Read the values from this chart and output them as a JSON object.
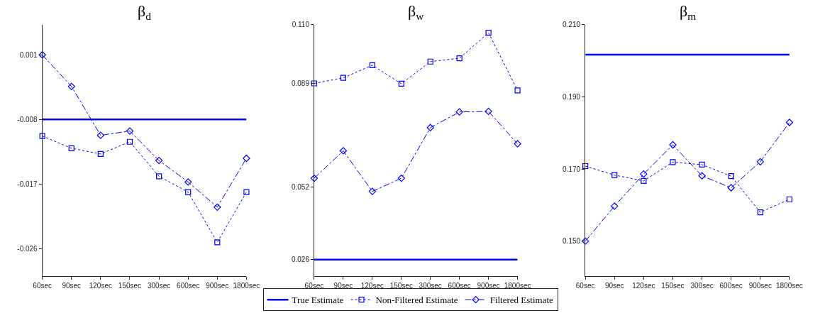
{
  "chart_data": [
    {
      "type": "line",
      "title": "β$_{d}$",
      "categories": [
        "60sec",
        "90sec",
        "120sec",
        "150sec",
        "300sec",
        "600sec",
        "900sec",
        "1800sec"
      ],
      "ylim": [
        -0.0298,
        0.0052
      ],
      "yticks": [
        -0.026,
        -0.017,
        -0.008,
        0.001
      ],
      "legend": "bottom",
      "series": [
        {
          "name": "True Estimate",
          "color": "#0000ff",
          "marker": "none",
          "line_style": "solid",
          "values": [
            -0.008,
            -0.008,
            -0.008,
            -0.008,
            -0.008,
            -0.008,
            -0.008,
            -0.008
          ]
        },
        {
          "name": "Non-Filtered Estimate",
          "color": "#0000ff",
          "marker": "square",
          "line_style": "dotted",
          "values": [
            -0.0103,
            -0.012,
            -0.0128,
            -0.0111,
            -0.0159,
            -0.0181,
            -0.0251,
            -0.0181
          ]
        },
        {
          "name": "Filtered Estimate",
          "color": "#0000ff",
          "marker": "diamond",
          "line_style": "dashdot",
          "values": [
            0.001,
            -0.0034,
            -0.0102,
            -0.0096,
            -0.0137,
            -0.0167,
            -0.0202,
            -0.0134
          ]
        }
      ]
    },
    {
      "type": "line",
      "title": "β$_{w}$",
      "categories": [
        "60sec",
        "90sec",
        "120sec",
        "150sec",
        "300sec",
        "600sec",
        "900sec",
        "1800sec"
      ],
      "ylim": [
        0.0201,
        0.11
      ],
      "yticks": [
        0.026,
        0.052,
        0.089,
        {
          "value": 0.11,
          "label": "0.110"
        }
      ],
      "series": [
        {
          "color": "#0000ff",
          "marker": "none",
          "line_style": "solid",
          "values": [
            0.026,
            0.026,
            0.026,
            0.026,
            0.026,
            0.026,
            0.026,
            0.026
          ]
        },
        {
          "color": "#0000ff",
          "marker": "square",
          "line_style": "dotted",
          "values": [
            0.089,
            0.091,
            0.0955,
            0.0889,
            0.0968,
            0.098,
            0.1071,
            0.0865
          ]
        },
        {
          "color": "#0000ff",
          "marker": "diamond",
          "line_style": "dashdot",
          "values": [
            0.0551,
            0.0649,
            0.0504,
            0.0551,
            0.0732,
            0.0788,
            0.079,
            0.0674
          ]
        }
      ]
    },
    {
      "type": "line",
      "title": "β$_{m}$",
      "categories": [
        "60sec",
        "90sec",
        "120sec",
        "150sec",
        "300sec",
        "600sec",
        "900sec",
        "1800sec"
      ],
      "ylim": [
        0.1403,
        0.21
      ],
      "yticks": [
        {
          "value": 0.15,
          "label": "0.150"
        },
        {
          "value": 0.17,
          "label": "0.170"
        },
        {
          "value": 0.19,
          "label": "0.190"
        },
        {
          "value": 0.21,
          "label": "0.210"
        }
      ],
      "series": [
        {
          "color": "#0000ff",
          "marker": "none",
          "line_style": "solid",
          "values": [
            0.2017,
            0.2017,
            0.2017,
            0.2017,
            0.2017,
            0.2017,
            0.2017,
            0.2017
          ]
        },
        {
          "color": "#0000ff",
          "marker": "square",
          "line_style": "dotted",
          "values": [
            0.1708,
            0.1683,
            0.1667,
            0.1719,
            0.1712,
            0.168,
            0.158,
            0.1616
          ]
        },
        {
          "color": "#0000ff",
          "marker": "diamond",
          "line_style": "dashdot",
          "values": [
            0.15,
            0.1597,
            0.1686,
            0.1767,
            0.1681,
            0.1648,
            0.172,
            0.1829
          ]
        }
      ]
    }
  ]
}
